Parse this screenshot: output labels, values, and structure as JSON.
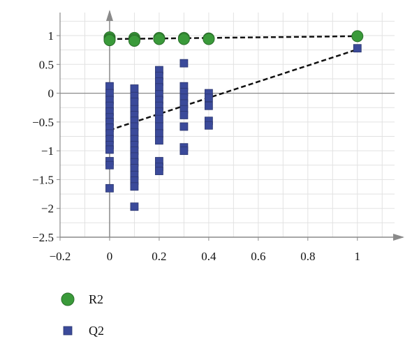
{
  "chart_data": {
    "type": "scatter",
    "title": "",
    "xlabel": "",
    "ylabel": "",
    "xlim": [
      -0.2,
      1.15
    ],
    "ylim": [
      -2.5,
      1.4
    ],
    "x_ticks": [
      -0.2,
      0,
      0.2,
      0.4,
      0.6,
      0.8,
      1
    ],
    "x_tick_labels": [
      "−0.2",
      "0",
      "0.2",
      "0.4",
      "0.6",
      "0.8",
      "1"
    ],
    "y_ticks": [
      1,
      0.5,
      0,
      -0.5,
      -1,
      -1.5,
      -2,
      -2.5
    ],
    "y_tick_labels": [
      "1",
      "0.5",
      "0",
      "−0.5",
      "−1",
      "−1.5",
      "−2",
      "−2.5"
    ],
    "grid": true,
    "legend_position": "bottom-left",
    "series": [
      {
        "name": "R2",
        "marker": "circle",
        "color": "#3a9a3a",
        "points": [
          [
            0,
            0.97
          ],
          [
            0,
            0.94
          ],
          [
            0,
            0.92
          ],
          [
            0.1,
            0.96
          ],
          [
            0.1,
            0.93
          ],
          [
            0.1,
            0.91
          ],
          [
            0.2,
            0.96
          ],
          [
            0.2,
            0.94
          ],
          [
            0.3,
            0.96
          ],
          [
            0.3,
            0.94
          ],
          [
            0.4,
            0.95
          ],
          [
            0.4,
            0.94
          ],
          [
            1,
            0.99
          ]
        ],
        "trend": [
          [
            0,
            0.94
          ],
          [
            1,
            0.99
          ]
        ]
      },
      {
        "name": "Q2",
        "marker": "square",
        "color": "#3b4a9a",
        "points": [
          [
            0,
            0.12
          ],
          [
            0,
            0.0
          ],
          [
            0,
            -0.12
          ],
          [
            0,
            -0.22
          ],
          [
            0,
            -0.32
          ],
          [
            0,
            -0.42
          ],
          [
            0,
            -0.5
          ],
          [
            0,
            -0.6
          ],
          [
            0,
            -0.7
          ],
          [
            0,
            -0.8
          ],
          [
            0,
            -0.9
          ],
          [
            0,
            -0.98
          ],
          [
            0,
            -1.18
          ],
          [
            0,
            -1.25
          ],
          [
            0,
            -1.65
          ],
          [
            0.1,
            0.08
          ],
          [
            0.1,
            -0.05
          ],
          [
            0.1,
            -0.15
          ],
          [
            0.1,
            -0.28
          ],
          [
            0.1,
            -0.38
          ],
          [
            0.1,
            -0.48
          ],
          [
            0.1,
            -0.58
          ],
          [
            0.1,
            -0.68
          ],
          [
            0.1,
            -0.8
          ],
          [
            0.1,
            -0.9
          ],
          [
            0.1,
            -1.0
          ],
          [
            0.1,
            -1.1
          ],
          [
            0.1,
            -1.2
          ],
          [
            0.1,
            -1.3
          ],
          [
            0.1,
            -1.42
          ],
          [
            0.1,
            -1.52
          ],
          [
            0.1,
            -1.62
          ],
          [
            0.1,
            -1.97
          ],
          [
            0.2,
            0.4
          ],
          [
            0.2,
            0.3
          ],
          [
            0.2,
            0.2
          ],
          [
            0.2,
            0.1
          ],
          [
            0.2,
            -0.02
          ],
          [
            0.2,
            -0.12
          ],
          [
            0.2,
            -0.22
          ],
          [
            0.2,
            -0.32
          ],
          [
            0.2,
            -0.45
          ],
          [
            0.2,
            -0.58
          ],
          [
            0.2,
            -0.7
          ],
          [
            0.2,
            -0.82
          ],
          [
            0.2,
            -1.18
          ],
          [
            0.2,
            -1.28
          ],
          [
            0.2,
            -1.35
          ],
          [
            0.3,
            0.52
          ],
          [
            0.3,
            0.12
          ],
          [
            0.3,
            0.02
          ],
          [
            0.3,
            -0.08
          ],
          [
            0.3,
            -0.18
          ],
          [
            0.3,
            -0.28
          ],
          [
            0.3,
            -0.38
          ],
          [
            0.3,
            -0.58
          ],
          [
            0.3,
            -0.94
          ],
          [
            0.3,
            -1.0
          ],
          [
            0.4,
            0.0
          ],
          [
            0.4,
            -0.08
          ],
          [
            0.4,
            -0.22
          ],
          [
            0.4,
            -0.48
          ],
          [
            0.4,
            -0.56
          ],
          [
            1,
            0.78
          ]
        ],
        "trend": [
          [
            0,
            -0.64
          ],
          [
            1,
            0.76
          ]
        ]
      }
    ]
  }
}
